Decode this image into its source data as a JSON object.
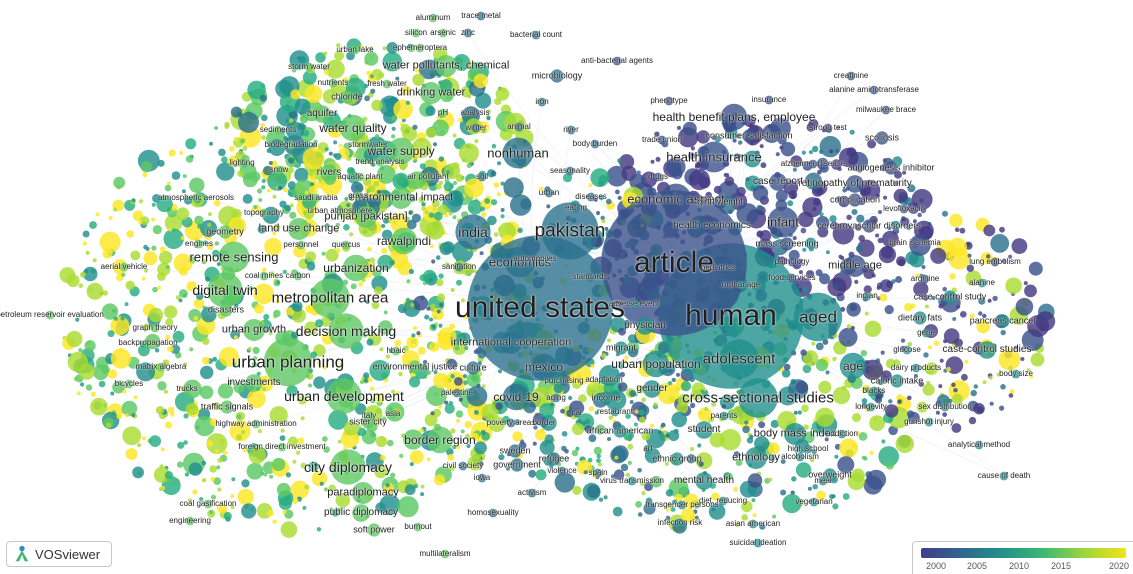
{
  "app": {
    "name": "VOSviewer"
  },
  "legend": {
    "ticks": [
      "2000",
      "2005",
      "2010",
      "2015",
      "2020"
    ],
    "colors": [
      "#3f3d8c",
      "#30678d",
      "#22928b",
      "#3fb870",
      "#9fd63c",
      "#f0e419"
    ]
  },
  "labels": [
    {
      "text": "united states",
      "size": 30
    },
    {
      "text": "human",
      "size": 30
    },
    {
      "text": "article",
      "size": 30
    },
    {
      "text": "pakistan",
      "size": 19
    },
    {
      "text": "aged",
      "size": 17
    },
    {
      "text": "urban planning",
      "size": 17
    },
    {
      "text": "adolescent",
      "size": 15
    },
    {
      "text": "metropolitan area",
      "size": 15
    },
    {
      "text": "cross-sectional studies",
      "size": 15
    },
    {
      "text": "decision making",
      "size": 14
    },
    {
      "text": "urban development",
      "size": 14
    },
    {
      "text": "city diplomacy",
      "size": 14
    },
    {
      "text": "digital twin",
      "size": 14
    },
    {
      "text": "india",
      "size": 14
    },
    {
      "text": "economics",
      "size": 13
    },
    {
      "text": "infant",
      "size": 13
    },
    {
      "text": "health insurance",
      "size": 13
    },
    {
      "text": "economic aspect",
      "size": 13
    },
    {
      "text": "nonhuman",
      "size": 13
    },
    {
      "text": "remote sensing",
      "size": 13
    },
    {
      "text": "water quality",
      "size": 12
    },
    {
      "text": "water supply",
      "size": 12
    },
    {
      "text": "urbanization",
      "size": 12
    },
    {
      "text": "rawalpindi",
      "size": 12
    },
    {
      "text": "covid-19",
      "size": 12
    },
    {
      "text": "border region",
      "size": 12
    },
    {
      "text": "mexico",
      "size": 12
    },
    {
      "text": "urban population",
      "size": 12
    },
    {
      "text": "health benefit plans, employee",
      "size": 12
    },
    {
      "text": "drinking water",
      "size": 11
    },
    {
      "text": "water pollutants, chemical",
      "size": 11
    },
    {
      "text": "environmental impact",
      "size": 11
    },
    {
      "text": "punjab [pakistan]",
      "size": 11
    },
    {
      "text": "land use change",
      "size": 11
    },
    {
      "text": "urban growth",
      "size": 11
    },
    {
      "text": "body mass index",
      "size": 11
    },
    {
      "text": "age",
      "size": 12
    },
    {
      "text": "middle age",
      "size": 11
    },
    {
      "text": "ethnology",
      "size": 11
    },
    {
      "text": "international cooperation",
      "size": 11
    },
    {
      "text": "paradiplomacy",
      "size": 11
    },
    {
      "text": "public diplomacy",
      "size": 10
    },
    {
      "text": "rivers",
      "size": 10
    },
    {
      "text": "investments",
      "size": 10
    },
    {
      "text": "gender",
      "size": 10
    },
    {
      "text": "mental health",
      "size": 10
    },
    {
      "text": "student",
      "size": 10
    },
    {
      "text": "retinopathy of prematurity",
      "size": 10
    },
    {
      "text": "case report",
      "size": 10
    },
    {
      "text": "case control study",
      "size": 9
    },
    {
      "text": "case-control studies",
      "size": 10
    },
    {
      "text": "pancreas cancer",
      "size": 9
    },
    {
      "text": "health economics",
      "size": 10
    },
    {
      "text": "physician",
      "size": 10
    },
    {
      "text": "environmental justice",
      "size": 9
    },
    {
      "text": "african american",
      "size": 9
    },
    {
      "text": "refugee",
      "size": 9
    },
    {
      "text": "government",
      "size": 9
    },
    {
      "text": "sweden",
      "size": 9
    },
    {
      "text": "aquifer",
      "size": 10
    },
    {
      "text": "chloride",
      "size": 9
    },
    {
      "text": "fresh water",
      "size": 8
    },
    {
      "text": "nutrients",
      "size": 8
    },
    {
      "text": "storm water",
      "size": 8
    },
    {
      "text": "stormwater",
      "size": 8
    },
    {
      "text": "sediments",
      "size": 8
    },
    {
      "text": "biodegradation",
      "size": 8
    },
    {
      "text": "urban lake",
      "size": 8
    },
    {
      "text": "ephemeroptera",
      "size": 8
    },
    {
      "text": "silicon",
      "size": 8
    },
    {
      "text": "arsenic",
      "size": 8
    },
    {
      "text": "zinc",
      "size": 8
    },
    {
      "text": "aluminum",
      "size": 8
    },
    {
      "text": "trace metal",
      "size": 8
    },
    {
      "text": "bacterial count",
      "size": 8
    },
    {
      "text": "anti-bacterial agents",
      "size": 8
    },
    {
      "text": "microbiology",
      "size": 9
    },
    {
      "text": "iron",
      "size": 8
    },
    {
      "text": "pH",
      "size": 8
    },
    {
      "text": "analysis",
      "size": 8
    },
    {
      "text": "winter",
      "size": 8
    },
    {
      "text": "animal",
      "size": 8
    },
    {
      "text": "river",
      "size": 8
    },
    {
      "text": "body burden",
      "size": 8
    },
    {
      "text": "phenotype",
      "size": 8
    },
    {
      "text": "insurance",
      "size": 8
    },
    {
      "text": "trade union",
      "size": 8
    },
    {
      "text": "consumer satisfaction",
      "size": 9
    },
    {
      "text": "stroop test",
      "size": 8
    },
    {
      "text": "scoliosis",
      "size": 9
    },
    {
      "text": "milwaukee brace",
      "size": 8
    },
    {
      "text": "creatinine",
      "size": 8
    },
    {
      "text": "alanine aminotransferase",
      "size": 8
    },
    {
      "text": "alzheimer disease",
      "size": 8
    },
    {
      "text": "angiogenesis inhibitor",
      "size": 9
    },
    {
      "text": "complication",
      "size": 9
    },
    {
      "text": "birth weight",
      "size": 9
    },
    {
      "text": "levofloxacin",
      "size": 8
    },
    {
      "text": "cerebrovascular disorders",
      "size": 9
    },
    {
      "text": "brain ischemia",
      "size": 8
    },
    {
      "text": "mass screening",
      "size": 9
    },
    {
      "text": "lung embolism",
      "size": 8
    },
    {
      "text": "pathology",
      "size": 8
    },
    {
      "text": "pediatrics",
      "size": 8
    },
    {
      "text": "food services",
      "size": 8
    },
    {
      "text": "orphanage",
      "size": 8
    },
    {
      "text": "arginine",
      "size": 8
    },
    {
      "text": "alanine",
      "size": 8
    },
    {
      "text": "indian",
      "size": 8
    },
    {
      "text": "dietary fats",
      "size": 9
    },
    {
      "text": "gene",
      "size": 8
    },
    {
      "text": "glucose",
      "size": 8
    },
    {
      "text": "dairy products",
      "size": 8
    },
    {
      "text": "caloric intake",
      "size": 9
    },
    {
      "text": "body size",
      "size": 8
    },
    {
      "text": "lighting",
      "size": 8
    },
    {
      "text": "snow",
      "size": 8
    },
    {
      "text": "trend analysis",
      "size": 8
    },
    {
      "text": "aquatic plant",
      "size": 8
    },
    {
      "text": "air pollutant",
      "size": 8
    },
    {
      "text": "soil",
      "size": 8
    },
    {
      "text": "atmospheric aerosols",
      "size": 8
    },
    {
      "text": "saudi arabia",
      "size": 8
    },
    {
      "text": "grass",
      "size": 8
    },
    {
      "text": "topography",
      "size": 8
    },
    {
      "text": "urban atmosphere",
      "size": 8
    },
    {
      "text": "geometry",
      "size": 9
    },
    {
      "text": "engines",
      "size": 8
    },
    {
      "text": "personnel",
      "size": 8
    },
    {
      "text": "quercus",
      "size": 8
    },
    {
      "text": "aerial vehicle",
      "size": 8
    },
    {
      "text": "coal mines",
      "size": 8
    },
    {
      "text": "carbon",
      "size": 8
    },
    {
      "text": "sanitation",
      "size": 8
    },
    {
      "text": "automobiles",
      "size": 8
    },
    {
      "text": "standards",
      "size": 8
    },
    {
      "text": "petroleum reservoir evaluation",
      "size": 8
    },
    {
      "text": "disasters",
      "size": 9
    },
    {
      "text": "graph theory",
      "size": 8
    },
    {
      "text": "backpropagation",
      "size": 8
    },
    {
      "text": "bicycles",
      "size": 8
    },
    {
      "text": "matrix algebra",
      "size": 8
    },
    {
      "text": "trucks",
      "size": 8
    },
    {
      "text": "traffic signals",
      "size": 9
    },
    {
      "text": "highway administration",
      "size": 8
    },
    {
      "text": "foreign direct investment",
      "size": 8
    },
    {
      "text": "sister city",
      "size": 9
    },
    {
      "text": "italy",
      "size": 8
    },
    {
      "text": "asia",
      "size": 8
    },
    {
      "text": "palestine",
      "size": 8
    },
    {
      "text": "culture",
      "size": 9
    },
    {
      "text": "purchasing",
      "size": 8
    },
    {
      "text": "adaptation",
      "size": 8
    },
    {
      "text": "aging",
      "size": 8
    },
    {
      "text": "income",
      "size": 9
    },
    {
      "text": "migrant",
      "size": 9
    },
    {
      "text": "adverse event",
      "size": 8
    },
    {
      "text": "car",
      "size": 8
    },
    {
      "text": "restaurant",
      "size": 8
    },
    {
      "text": "poverty areas",
      "size": 8
    },
    {
      "text": "border",
      "size": 8
    },
    {
      "text": "art",
      "size": 8
    },
    {
      "text": "ethnic group",
      "size": 9
    },
    {
      "text": "parents",
      "size": 8
    },
    {
      "text": "addiction",
      "size": 8
    },
    {
      "text": "high school",
      "size": 8
    },
    {
      "text": "alcoholism",
      "size": 8
    },
    {
      "text": "meal",
      "size": 8
    },
    {
      "text": "overweight",
      "size": 9
    },
    {
      "text": "vegetarian",
      "size": 8
    },
    {
      "text": "diet, reducing",
      "size": 8
    },
    {
      "text": "asian american",
      "size": 8
    },
    {
      "text": "suicidal ideation",
      "size": 8
    },
    {
      "text": "transgender persons",
      "size": 8
    },
    {
      "text": "infection risk",
      "size": 8
    },
    {
      "text": "virus transmission",
      "size": 8
    },
    {
      "text": "spain",
      "size": 8
    },
    {
      "text": "violence",
      "size": 8
    },
    {
      "text": "iowa",
      "size": 8
    },
    {
      "text": "civil society",
      "size": 8
    },
    {
      "text": "activism",
      "size": 8
    },
    {
      "text": "homosexuality",
      "size": 8
    },
    {
      "text": "burnout",
      "size": 8
    },
    {
      "text": "soft power",
      "size": 9
    },
    {
      "text": "multilateralism",
      "size": 8
    },
    {
      "text": "coal gasification",
      "size": 8
    },
    {
      "text": "engineering",
      "size": 8
    },
    {
      "text": "analytical method",
      "size": 8
    },
    {
      "text": "cause of death",
      "size": 8
    },
    {
      "text": "gunshot injury",
      "size": 8
    },
    {
      "text": "sex distribution",
      "size": 8
    },
    {
      "text": "longevity",
      "size": 8
    },
    {
      "text": "blacks",
      "size": 8
    },
    {
      "text": "hbaic",
      "size": 8
    },
    {
      "text": "urban",
      "size": 8
    },
    {
      "text": "seasonality",
      "size": 8
    },
    {
      "text": "eating",
      "size": 8
    },
    {
      "text": "diseases",
      "size": 8
    },
    {
      "text": "drugs",
      "size": 8
    },
    {
      "text": "season",
      "size": 8
    }
  ]
}
